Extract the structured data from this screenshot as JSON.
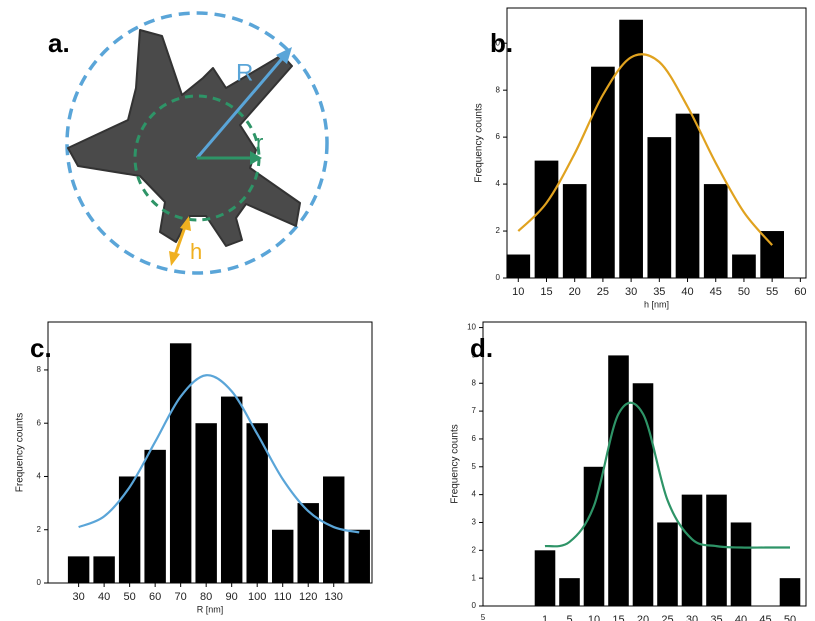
{
  "diagram": {
    "label": "a.",
    "labels": [
      "R",
      "r",
      "h"
    ]
  },
  "chart_data": [
    {
      "type": "bar",
      "label": "b.",
      "xlabel": "h [nm]",
      "ylabel": "Frequency counts",
      "x": [
        10,
        15,
        20,
        25,
        30,
        35,
        40,
        45,
        50,
        55
      ],
      "values": [
        1,
        5,
        4,
        9,
        11,
        6,
        7,
        4,
        1,
        2
      ],
      "color": "#000000",
      "xlim": [
        8,
        61
      ],
      "ylim": [
        0,
        11.5
      ],
      "xticks": [
        10,
        15,
        20,
        25,
        30,
        35,
        40,
        45,
        50,
        55,
        60
      ],
      "yticks": [
        0,
        2,
        4,
        6,
        8,
        10
      ],
      "fit": {
        "color": "#e0a21f",
        "x": [
          10,
          15,
          20,
          25,
          30,
          35,
          40,
          45,
          50,
          55
        ],
        "values": [
          2.0,
          3.2,
          5.3,
          7.8,
          9.4,
          9.2,
          7.3,
          4.9,
          2.8,
          1.4
        ]
      }
    },
    {
      "type": "bar",
      "label": "c.",
      "xlabel": "R [nm]",
      "ylabel": "Frequency counts",
      "x": [
        30,
        40,
        50,
        60,
        70,
        80,
        90,
        100,
        110,
        120,
        130,
        140
      ],
      "values": [
        1,
        1,
        4,
        5,
        9,
        6,
        7,
        6,
        2,
        3,
        4,
        2
      ],
      "color": "#000000",
      "xlim": [
        18,
        145
      ],
      "ylim": [
        0,
        9.8
      ],
      "xticks": [
        30,
        40,
        50,
        60,
        70,
        80,
        90,
        100,
        110,
        120,
        130
      ],
      "yticks": [
        0,
        2,
        4,
        6,
        8
      ],
      "fit": {
        "color": "#5aa5d8",
        "x": [
          30,
          40,
          50,
          60,
          70,
          80,
          90,
          100,
          110,
          120,
          130,
          140
        ],
        "values": [
          2.1,
          2.5,
          3.6,
          5.3,
          7.0,
          7.8,
          7.2,
          5.6,
          3.9,
          2.7,
          2.1,
          1.9
        ]
      }
    },
    {
      "type": "bar",
      "label": "d.",
      "xlabel": "r [nm]",
      "ylabel": "Frequency counts",
      "x_axis_start_label": "5",
      "categories": [
        "1",
        "5",
        "10",
        "15",
        "20",
        "25",
        "30",
        "35",
        "40",
        "45",
        "50"
      ],
      "values": [
        2,
        1,
        5,
        9,
        8,
        3,
        4,
        4,
        3,
        0,
        1
      ],
      "color": "#000000",
      "ylim": [
        0,
        10.2
      ],
      "yticks": [
        0,
        1,
        2,
        3,
        4,
        5,
        6,
        7,
        8,
        9,
        10
      ],
      "fit": {
        "color": "#2e9467",
        "values": [
          2.15,
          2.3,
          3.6,
          6.9,
          6.9,
          3.8,
          2.4,
          2.15,
          2.1,
          2.1,
          2.1
        ]
      }
    }
  ]
}
